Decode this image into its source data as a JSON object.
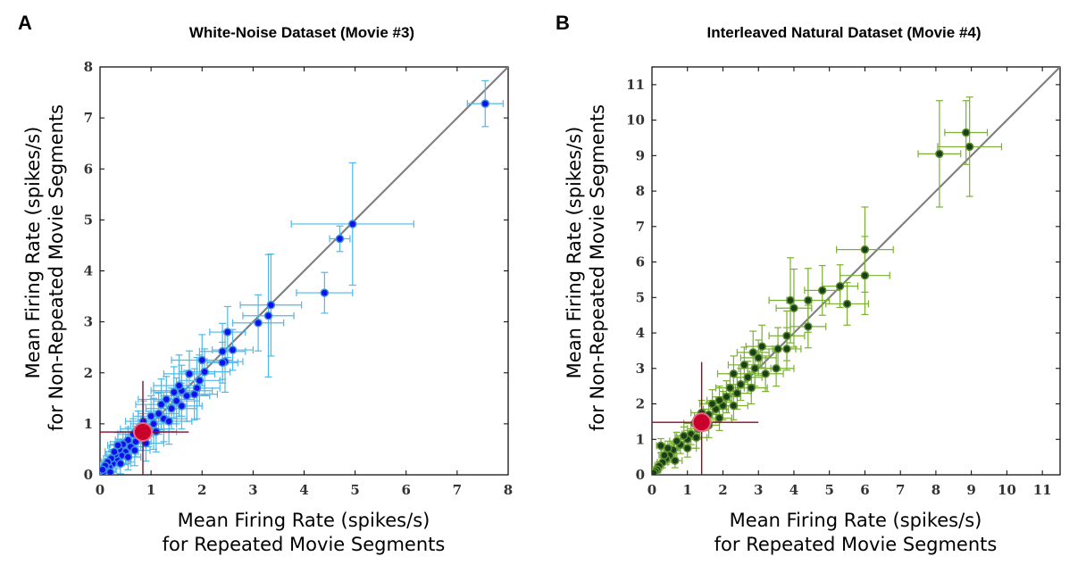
{
  "chart_data": [
    {
      "type": "scatter",
      "panel": "A",
      "title": "White-Noise Dataset (Movie #3)",
      "xlabel": [
        "Mean Firing Rate (spikes/s)",
        "for Repeated Movie Segments"
      ],
      "ylabel": [
        "Mean Firing Rate (spikes/s)",
        "for Non-Repeated Movie Segments"
      ],
      "xlim": [
        0,
        8
      ],
      "ylim": [
        0,
        8
      ],
      "xticks": [
        0,
        1,
        2,
        3,
        4,
        5,
        6,
        7,
        8
      ],
      "yticks": [
        0,
        1,
        2,
        3,
        4,
        5,
        6,
        7,
        8
      ],
      "diagonal": true,
      "colors": {
        "point": "#1010ee",
        "point_edge": "#3a8fe0",
        "errorbar": "#4fb8e8",
        "mean": "#c8002a",
        "mean_bar": "#8a0a2a",
        "diagonal": "#808080"
      },
      "points": [
        {
          "x": 7.55,
          "y": 7.28,
          "xerr": 0.35,
          "yerr": 0.45
        },
        {
          "x": 4.95,
          "y": 4.92,
          "xerr": 1.2,
          "yerr": 1.2
        },
        {
          "x": 4.7,
          "y": 4.63,
          "xerr": 0.2,
          "yerr": 0.25
        },
        {
          "x": 4.4,
          "y": 3.57,
          "xerr": 0.55,
          "yerr": 0.4
        },
        {
          "x": 3.35,
          "y": 3.33,
          "xerr": 0.6,
          "yerr": 1.0
        },
        {
          "x": 3.3,
          "y": 3.12,
          "xerr": 0.5,
          "yerr": 1.2
        },
        {
          "x": 3.1,
          "y": 2.98,
          "xerr": 0.5,
          "yerr": 0.55
        },
        {
          "x": 2.5,
          "y": 2.8,
          "xerr": 0.35,
          "yerr": 0.5
        },
        {
          "x": 2.6,
          "y": 2.45,
          "xerr": 0.4,
          "yerr": 0.4
        },
        {
          "x": 2.4,
          "y": 2.42,
          "xerr": 0.45,
          "yerr": 0.55
        },
        {
          "x": 2.45,
          "y": 2.22,
          "xerr": 0.35,
          "yerr": 0.6
        },
        {
          "x": 2.4,
          "y": 2.2,
          "xerr": 0.3,
          "yerr": 0.4
        },
        {
          "x": 2.0,
          "y": 2.25,
          "xerr": 0.6,
          "yerr": 0.5
        },
        {
          "x": 2.05,
          "y": 2.02,
          "xerr": 0.5,
          "yerr": 0.45
        },
        {
          "x": 1.95,
          "y": 1.85,
          "xerr": 0.4,
          "yerr": 0.5
        },
        {
          "x": 1.9,
          "y": 1.7,
          "xerr": 0.45,
          "yerr": 0.6
        },
        {
          "x": 1.75,
          "y": 1.98,
          "xerr": 0.5,
          "yerr": 0.45
        },
        {
          "x": 1.7,
          "y": 1.55,
          "xerr": 0.45,
          "yerr": 0.5
        },
        {
          "x": 1.6,
          "y": 1.65,
          "xerr": 0.6,
          "yerr": 0.5
        },
        {
          "x": 1.5,
          "y": 1.45,
          "xerr": 0.45,
          "yerr": 0.45
        },
        {
          "x": 1.55,
          "y": 1.75,
          "xerr": 0.5,
          "yerr": 0.6
        },
        {
          "x": 1.45,
          "y": 1.62,
          "xerr": 0.4,
          "yerr": 0.5
        },
        {
          "x": 1.4,
          "y": 1.3,
          "xerr": 0.5,
          "yerr": 0.4
        },
        {
          "x": 1.3,
          "y": 1.48,
          "xerr": 0.55,
          "yerr": 0.45
        },
        {
          "x": 1.2,
          "y": 1.38,
          "xerr": 0.5,
          "yerr": 0.5
        },
        {
          "x": 1.25,
          "y": 1.1,
          "xerr": 0.45,
          "yerr": 0.45
        },
        {
          "x": 1.15,
          "y": 1.2,
          "xerr": 0.4,
          "yerr": 0.4
        },
        {
          "x": 1.05,
          "y": 1.0,
          "xerr": 0.45,
          "yerr": 0.5
        },
        {
          "x": 1.0,
          "y": 1.15,
          "xerr": 0.35,
          "yerr": 0.4
        },
        {
          "x": 0.95,
          "y": 0.9,
          "xerr": 0.4,
          "yerr": 0.35
        },
        {
          "x": 0.85,
          "y": 1.05,
          "xerr": 0.35,
          "yerr": 0.4
        },
        {
          "x": 0.8,
          "y": 0.78,
          "xerr": 0.3,
          "yerr": 0.3
        },
        {
          "x": 0.75,
          "y": 0.9,
          "xerr": 0.35,
          "yerr": 0.35
        },
        {
          "x": 0.7,
          "y": 0.65,
          "xerr": 0.3,
          "yerr": 0.3
        },
        {
          "x": 0.65,
          "y": 0.8,
          "xerr": 0.3,
          "yerr": 0.3
        },
        {
          "x": 0.6,
          "y": 0.55,
          "xerr": 0.25,
          "yerr": 0.3
        },
        {
          "x": 0.55,
          "y": 0.68,
          "xerr": 0.25,
          "yerr": 0.25
        },
        {
          "x": 0.5,
          "y": 0.45,
          "xerr": 0.25,
          "yerr": 0.25
        },
        {
          "x": 0.45,
          "y": 0.6,
          "xerr": 0.25,
          "yerr": 0.25
        },
        {
          "x": 0.42,
          "y": 0.38,
          "xerr": 0.2,
          "yerr": 0.2
        },
        {
          "x": 0.38,
          "y": 0.5,
          "xerr": 0.2,
          "yerr": 0.2
        },
        {
          "x": 0.33,
          "y": 0.3,
          "xerr": 0.18,
          "yerr": 0.18
        },
        {
          "x": 0.3,
          "y": 0.4,
          "xerr": 0.18,
          "yerr": 0.18
        },
        {
          "x": 0.25,
          "y": 0.22,
          "xerr": 0.15,
          "yerr": 0.15
        },
        {
          "x": 0.22,
          "y": 0.32,
          "xerr": 0.15,
          "yerr": 0.15
        },
        {
          "x": 0.18,
          "y": 0.15,
          "xerr": 0.12,
          "yerr": 0.12
        },
        {
          "x": 0.15,
          "y": 0.25,
          "xerr": 0.12,
          "yerr": 0.12
        },
        {
          "x": 0.12,
          "y": 0.1,
          "xerr": 0.1,
          "yerr": 0.1
        },
        {
          "x": 0.1,
          "y": 0.18,
          "xerr": 0.1,
          "yerr": 0.1
        },
        {
          "x": 0.07,
          "y": 0.06,
          "xerr": 0.06,
          "yerr": 0.06
        },
        {
          "x": 0.05,
          "y": 0.1,
          "xerr": 0.05,
          "yerr": 0.05
        },
        {
          "x": 0.55,
          "y": 0.35,
          "xerr": 0.25,
          "yerr": 0.25
        },
        {
          "x": 0.35,
          "y": 0.58,
          "xerr": 0.2,
          "yerr": 0.25
        },
        {
          "x": 0.68,
          "y": 0.48,
          "xerr": 0.3,
          "yerr": 0.3
        },
        {
          "x": 0.28,
          "y": 0.45,
          "xerr": 0.18,
          "yerr": 0.2
        },
        {
          "x": 0.9,
          "y": 0.62,
          "xerr": 0.35,
          "yerr": 0.35
        },
        {
          "x": 1.1,
          "y": 0.85,
          "xerr": 0.4,
          "yerr": 0.4
        },
        {
          "x": 1.35,
          "y": 1.05,
          "xerr": 0.45,
          "yerr": 0.45
        },
        {
          "x": 1.6,
          "y": 1.35,
          "xerr": 0.4,
          "yerr": 0.45
        },
        {
          "x": 1.85,
          "y": 1.58,
          "xerr": 0.45,
          "yerr": 0.5
        },
        {
          "x": 0.2,
          "y": 0.05,
          "xerr": 0.12,
          "yerr": 0.1
        },
        {
          "x": 0.4,
          "y": 0.22,
          "xerr": 0.2,
          "yerr": 0.2
        }
      ],
      "mean": {
        "x": 0.84,
        "y": 0.84,
        "xerr": 0.9,
        "yerr": 1.0
      }
    },
    {
      "type": "scatter",
      "panel": "B",
      "title": "Interleaved Natural Dataset (Movie #4)",
      "xlabel": [
        "Mean Firing Rate (spikes/s)",
        "for Repeated Movie Segments"
      ],
      "ylabel": [
        "Mean Firing Rate (spikes/s)",
        "for Non-Repeated Movie Segments"
      ],
      "xlim": [
        0,
        11.5
      ],
      "ylim": [
        0,
        11.5
      ],
      "xticks": [
        0,
        1,
        2,
        3,
        4,
        5,
        6,
        7,
        8,
        9,
        10,
        11
      ],
      "yticks": [
        0,
        1,
        2,
        3,
        4,
        5,
        6,
        7,
        8,
        9,
        10,
        11
      ],
      "diagonal": true,
      "colors": {
        "point": "#1a3d1a",
        "point_edge": "#5c8f2c",
        "errorbar": "#7ab034",
        "mean": "#c8002a",
        "mean_bar": "#8a0a2a",
        "diagonal": "#808080"
      },
      "points": [
        {
          "x": 8.85,
          "y": 9.65,
          "xerr": 0.6,
          "yerr": 0.9
        },
        {
          "x": 8.95,
          "y": 9.25,
          "xerr": 0.9,
          "yerr": 1.4
        },
        {
          "x": 8.1,
          "y": 9.05,
          "xerr": 0.6,
          "yerr": 1.5
        },
        {
          "x": 6.0,
          "y": 6.35,
          "xerr": 0.8,
          "yerr": 1.2
        },
        {
          "x": 6.0,
          "y": 5.62,
          "xerr": 0.7,
          "yerr": 1.1
        },
        {
          "x": 5.3,
          "y": 5.32,
          "xerr": 0.5,
          "yerr": 0.6
        },
        {
          "x": 5.5,
          "y": 4.82,
          "xerr": 0.6,
          "yerr": 0.6
        },
        {
          "x": 4.8,
          "y": 5.2,
          "xerr": 0.5,
          "yerr": 0.7
        },
        {
          "x": 4.4,
          "y": 4.92,
          "xerr": 0.6,
          "yerr": 0.9
        },
        {
          "x": 3.9,
          "y": 4.92,
          "xerr": 0.6,
          "yerr": 1.2
        },
        {
          "x": 4.0,
          "y": 4.7,
          "xerr": 0.5,
          "yerr": 1.1
        },
        {
          "x": 4.4,
          "y": 4.18,
          "xerr": 0.5,
          "yerr": 0.6
        },
        {
          "x": 3.8,
          "y": 3.92,
          "xerr": 0.5,
          "yerr": 0.7
        },
        {
          "x": 3.8,
          "y": 3.55,
          "xerr": 0.4,
          "yerr": 0.6
        },
        {
          "x": 3.55,
          "y": 3.55,
          "xerr": 0.5,
          "yerr": 0.6
        },
        {
          "x": 3.1,
          "y": 3.62,
          "xerr": 0.45,
          "yerr": 0.6
        },
        {
          "x": 3.0,
          "y": 3.3,
          "xerr": 0.5,
          "yerr": 0.5
        },
        {
          "x": 2.9,
          "y": 3.0,
          "xerr": 0.45,
          "yerr": 0.5
        },
        {
          "x": 2.85,
          "y": 3.45,
          "xerr": 0.45,
          "yerr": 0.6
        },
        {
          "x": 3.2,
          "y": 2.85,
          "xerr": 0.5,
          "yerr": 0.5
        },
        {
          "x": 2.6,
          "y": 3.1,
          "xerr": 0.45,
          "yerr": 0.5
        },
        {
          "x": 2.7,
          "y": 2.75,
          "xerr": 0.4,
          "yerr": 0.45
        },
        {
          "x": 2.5,
          "y": 2.55,
          "xerr": 0.4,
          "yerr": 0.45
        },
        {
          "x": 2.3,
          "y": 2.85,
          "xerr": 0.45,
          "yerr": 0.5
        },
        {
          "x": 2.4,
          "y": 2.3,
          "xerr": 0.4,
          "yerr": 0.45
        },
        {
          "x": 2.2,
          "y": 2.45,
          "xerr": 0.4,
          "yerr": 0.4
        },
        {
          "x": 2.1,
          "y": 2.2,
          "xerr": 0.4,
          "yerr": 0.45
        },
        {
          "x": 2.0,
          "y": 1.95,
          "xerr": 0.35,
          "yerr": 0.4
        },
        {
          "x": 1.9,
          "y": 2.1,
          "xerr": 0.35,
          "yerr": 0.4
        },
        {
          "x": 1.8,
          "y": 1.85,
          "xerr": 0.35,
          "yerr": 0.35
        },
        {
          "x": 1.7,
          "y": 2.0,
          "xerr": 0.35,
          "yerr": 0.4
        },
        {
          "x": 1.6,
          "y": 1.7,
          "xerr": 0.3,
          "yerr": 0.35
        },
        {
          "x": 1.5,
          "y": 1.55,
          "xerr": 0.3,
          "yerr": 0.3
        },
        {
          "x": 1.4,
          "y": 1.75,
          "xerr": 0.3,
          "yerr": 0.35
        },
        {
          "x": 1.3,
          "y": 1.3,
          "xerr": 0.3,
          "yerr": 0.3
        },
        {
          "x": 1.2,
          "y": 1.45,
          "xerr": 0.3,
          "yerr": 0.3
        },
        {
          "x": 1.1,
          "y": 1.15,
          "xerr": 0.25,
          "yerr": 0.3
        },
        {
          "x": 1.0,
          "y": 1.0,
          "xerr": 0.25,
          "yerr": 0.25
        },
        {
          "x": 0.9,
          "y": 1.1,
          "xerr": 0.25,
          "yerr": 0.25
        },
        {
          "x": 0.8,
          "y": 0.85,
          "xerr": 0.25,
          "yerr": 0.25
        },
        {
          "x": 0.7,
          "y": 0.95,
          "xerr": 0.2,
          "yerr": 0.25
        },
        {
          "x": 0.6,
          "y": 0.7,
          "xerr": 0.2,
          "yerr": 0.2
        },
        {
          "x": 0.5,
          "y": 0.55,
          "xerr": 0.2,
          "yerr": 0.2
        },
        {
          "x": 0.45,
          "y": 0.75,
          "xerr": 0.18,
          "yerr": 0.2
        },
        {
          "x": 0.4,
          "y": 0.45,
          "xerr": 0.15,
          "yerr": 0.15
        },
        {
          "x": 0.3,
          "y": 0.35,
          "xerr": 0.15,
          "yerr": 0.15
        },
        {
          "x": 0.25,
          "y": 0.82,
          "xerr": 0.12,
          "yerr": 0.2
        },
        {
          "x": 0.2,
          "y": 0.25,
          "xerr": 0.12,
          "yerr": 0.12
        },
        {
          "x": 0.15,
          "y": 0.15,
          "xerr": 0.1,
          "yerr": 0.1
        },
        {
          "x": 0.1,
          "y": 0.1,
          "xerr": 0.08,
          "yerr": 0.08
        },
        {
          "x": 0.05,
          "y": 0.05,
          "xerr": 0.05,
          "yerr": 0.05
        },
        {
          "x": 1.6,
          "y": 1.4,
          "xerr": 0.3,
          "yerr": 0.35
        },
        {
          "x": 2.3,
          "y": 1.95,
          "xerr": 0.4,
          "yerr": 0.4
        },
        {
          "x": 1.0,
          "y": 0.75,
          "xerr": 0.25,
          "yerr": 0.25
        },
        {
          "x": 2.8,
          "y": 2.45,
          "xerr": 0.45,
          "yerr": 0.45
        },
        {
          "x": 3.5,
          "y": 3.0,
          "xerr": 0.5,
          "yerr": 0.5
        },
        {
          "x": 0.65,
          "y": 0.4,
          "xerr": 0.2,
          "yerr": 0.2
        },
        {
          "x": 1.9,
          "y": 1.6,
          "xerr": 0.35,
          "yerr": 0.35
        },
        {
          "x": 1.25,
          "y": 1.05,
          "xerr": 0.3,
          "yerr": 0.3
        },
        {
          "x": 0.35,
          "y": 0.55,
          "xerr": 0.15,
          "yerr": 0.15
        }
      ],
      "mean": {
        "x": 1.4,
        "y": 1.48,
        "xerr": 1.6,
        "yerr": 1.7
      }
    }
  ]
}
